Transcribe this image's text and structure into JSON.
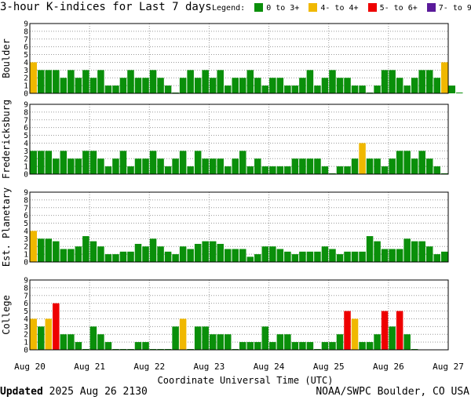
{
  "title": "3-hour K-indices for Last 7 days",
  "legend": {
    "label": "Legend:",
    "items": [
      {
        "label": "0 to 3+",
        "color": "#0a8f0a"
      },
      {
        "label": "4- to 4+",
        "color": "#f0b800"
      },
      {
        "label": "5- to 6+",
        "color": "#ee0000"
      },
      {
        "label": "7- to 9",
        "color": "#5a1a9a"
      }
    ]
  },
  "footer": {
    "updated_label": "Updated",
    "updated_value": "2025 Aug 26 2130",
    "credit": "NOAA/SWPC Boulder, CO USA"
  },
  "chart_data": {
    "type": "bar",
    "xlabel": "Coordinate Universal Time (UTC)",
    "x_ticks": [
      "Aug 20",
      "Aug 21",
      "Aug 22",
      "Aug 23",
      "Aug 24",
      "Aug 25",
      "Aug 26",
      "Aug 27"
    ],
    "ylim": [
      0,
      9
    ],
    "y_ticks": [
      0,
      1,
      2,
      3,
      4,
      5,
      6,
      7,
      8,
      9
    ],
    "grid": true,
    "color_thresholds": [
      {
        "min": 0,
        "max": 3.99,
        "color": "#0a8f0a"
      },
      {
        "min": 4,
        "max": 4.99,
        "color": "#f0b800"
      },
      {
        "min": 5,
        "max": 6.99,
        "color": "#ee0000"
      },
      {
        "min": 7,
        "max": 9,
        "color": "#5a1a9a"
      }
    ],
    "panels": [
      {
        "name": "Boulder",
        "values": [
          4,
          3,
          3,
          3,
          2,
          3,
          2,
          3,
          2,
          3,
          1,
          1,
          2,
          3,
          2,
          2,
          3,
          2,
          1,
          0,
          2,
          3,
          2,
          3,
          2,
          3,
          1,
          2,
          2,
          3,
          2,
          1,
          2,
          2,
          1,
          1,
          2,
          3,
          1,
          2,
          3,
          2,
          2,
          1,
          1,
          0,
          1,
          3,
          3,
          2,
          1,
          2,
          3,
          3,
          2,
          4,
          1,
          0
        ]
      },
      {
        "name": "Fredericksburg",
        "values": [
          3,
          3,
          3,
          2,
          3,
          2,
          2,
          3,
          3,
          2,
          1,
          2,
          3,
          1,
          2,
          2,
          3,
          2,
          1,
          2,
          3,
          1,
          3,
          2,
          2,
          2,
          1,
          2,
          3,
          1,
          2,
          1,
          1,
          1,
          1,
          2,
          2,
          2,
          2,
          1,
          0,
          1,
          1,
          2,
          4,
          2,
          2,
          1,
          2,
          3,
          3,
          2,
          3,
          2,
          1,
          0
        ]
      },
      {
        "name": "Est. Planetary",
        "values": [
          4,
          3,
          3,
          2.67,
          1.67,
          1.67,
          2,
          3.33,
          2.67,
          2,
          1,
          1,
          1.33,
          1.33,
          2.33,
          2,
          3,
          2,
          1.33,
          1,
          2,
          1.67,
          2.33,
          2.67,
          2.67,
          2.33,
          1.67,
          1.67,
          1.67,
          0.67,
          1,
          2,
          2,
          1.67,
          1.33,
          1,
          1.33,
          1.33,
          1.33,
          2,
          1.67,
          1,
          1.33,
          1.33,
          1.33,
          3.33,
          2.67,
          1.67,
          1.67,
          1.67,
          3,
          2.67,
          2.67,
          2,
          1,
          1.33
        ]
      },
      {
        "name": "College",
        "values": [
          4,
          3,
          4,
          6,
          2,
          2,
          1,
          0,
          3,
          2,
          1,
          0,
          0,
          0,
          1,
          1,
          0,
          0,
          0,
          3,
          4,
          0,
          3,
          3,
          2,
          2,
          2,
          0,
          1,
          1,
          1,
          3,
          1,
          2,
          2,
          1,
          1,
          1,
          0,
          1,
          1,
          2,
          5,
          4,
          1,
          1,
          2,
          5,
          3,
          5,
          2,
          0
        ]
      }
    ]
  }
}
